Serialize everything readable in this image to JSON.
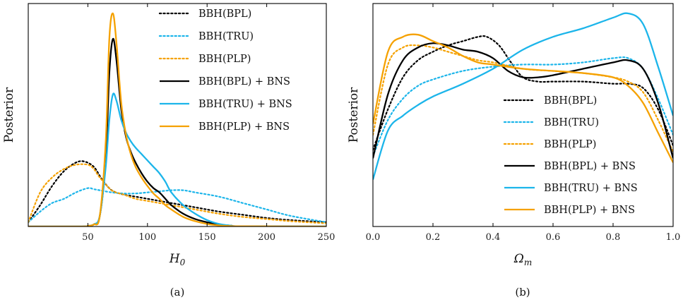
{
  "colors": {
    "BPL": "#000000",
    "TRU": "#1cb5ea",
    "PLP": "#f5a100"
  },
  "chart_data": [
    {
      "type": "line",
      "panel_caption": "(a)",
      "xlabel_main": "H",
      "xlabel_sub": "0",
      "ylabel": "Posterior",
      "xlim": [
        0,
        250
      ],
      "ylim": [
        0,
        1.0
      ],
      "xticks": [
        50,
        100,
        150,
        200,
        250
      ],
      "xtick_labels": [
        "50",
        "100",
        "150",
        "200",
        "250"
      ],
      "legend_position": "upper-right",
      "series": [
        {
          "name": "BBH(BPL)",
          "color": "BPL",
          "dash": "dotted",
          "x": [
            0,
            10,
            20,
            30,
            40,
            47,
            55,
            62,
            70,
            80,
            90,
            100,
            120,
            140,
            160,
            180,
            200,
            220,
            250
          ],
          "y": [
            0.02,
            0.1,
            0.19,
            0.26,
            0.3,
            0.305,
            0.28,
            0.22,
            0.17,
            0.15,
            0.14,
            0.13,
            0.11,
            0.09,
            0.07,
            0.055,
            0.04,
            0.03,
            0.02
          ]
        },
        {
          "name": "BBH(TRU)",
          "color": "TRU",
          "dash": "dotted",
          "x": [
            0,
            10,
            20,
            30,
            40,
            50,
            55,
            60,
            70,
            80,
            90,
            100,
            110,
            120,
            130,
            140,
            160,
            180,
            200,
            220,
            250
          ],
          "y": [
            0.02,
            0.07,
            0.11,
            0.13,
            0.16,
            0.18,
            0.175,
            0.17,
            0.16,
            0.155,
            0.155,
            0.16,
            0.165,
            0.17,
            0.17,
            0.16,
            0.14,
            0.11,
            0.08,
            0.05,
            0.02
          ]
        },
        {
          "name": "BBH(PLP)",
          "color": "PLP",
          "dash": "dotted",
          "x": [
            0,
            10,
            20,
            30,
            40,
            50,
            55,
            60,
            70,
            80,
            90,
            100,
            120,
            140,
            160,
            180,
            200,
            220,
            250
          ],
          "y": [
            0.02,
            0.16,
            0.23,
            0.27,
            0.29,
            0.29,
            0.27,
            0.23,
            0.17,
            0.15,
            0.13,
            0.12,
            0.1,
            0.08,
            0.06,
            0.045,
            0.035,
            0.025,
            0.015
          ]
        },
        {
          "name": "BBH(BPL) + BNS",
          "color": "BPL",
          "dash": "solid",
          "x": [
            0,
            45,
            50,
            55,
            60,
            65,
            68,
            71,
            74,
            78,
            82,
            86,
            90,
            95,
            100,
            105,
            110,
            115,
            120,
            130,
            140,
            150,
            160,
            170,
            180,
            250
          ],
          "y": [
            0,
            0,
            0.003,
            0.01,
            0.05,
            0.32,
            0.72,
            0.88,
            0.78,
            0.55,
            0.42,
            0.35,
            0.3,
            0.25,
            0.21,
            0.18,
            0.16,
            0.13,
            0.1,
            0.06,
            0.035,
            0.02,
            0.01,
            0.004,
            0.001,
            0
          ]
        },
        {
          "name": "BBH(TRU) + BNS",
          "color": "TRU",
          "dash": "solid",
          "x": [
            0,
            45,
            50,
            55,
            60,
            65,
            68,
            71,
            74,
            78,
            82,
            86,
            90,
            95,
            100,
            105,
            110,
            115,
            120,
            130,
            140,
            150,
            160,
            170,
            180,
            250
          ],
          "y": [
            0,
            0,
            0.003,
            0.01,
            0.05,
            0.28,
            0.5,
            0.62,
            0.59,
            0.5,
            0.44,
            0.4,
            0.37,
            0.34,
            0.31,
            0.28,
            0.25,
            0.21,
            0.16,
            0.1,
            0.06,
            0.03,
            0.012,
            0.004,
            0.001,
            0
          ]
        },
        {
          "name": "BBH(PLP) + BNS",
          "color": "PLP",
          "dash": "solid",
          "x": [
            0,
            45,
            50,
            55,
            60,
            65,
            68,
            71,
            74,
            78,
            82,
            86,
            90,
            95,
            100,
            105,
            110,
            115,
            120,
            130,
            140,
            150,
            160,
            170,
            180,
            250
          ],
          "y": [
            0,
            0,
            0.003,
            0.01,
            0.05,
            0.4,
            0.88,
            1.0,
            0.86,
            0.58,
            0.43,
            0.34,
            0.28,
            0.23,
            0.19,
            0.155,
            0.13,
            0.1,
            0.08,
            0.045,
            0.025,
            0.012,
            0.005,
            0.002,
            0.001,
            0
          ]
        }
      ]
    },
    {
      "type": "line",
      "panel_caption": "(b)",
      "xlabel_main": "Ω",
      "xlabel_sub": "m",
      "ylabel": "Posterior",
      "xlim": [
        0,
        1.0
      ],
      "ylim": [
        0,
        1.0
      ],
      "xticks": [
        0.0,
        0.2,
        0.4,
        0.6,
        0.8,
        1.0
      ],
      "xtick_labels": [
        "0.0",
        "0.2",
        "0.4",
        "0.6",
        "0.8",
        "1.0"
      ],
      "legend_position": "lower-right",
      "series": [
        {
          "name": "BBH(BPL)",
          "color": "BPL",
          "dash": "dotted",
          "x": [
            0,
            0.05,
            0.1,
            0.15,
            0.2,
            0.25,
            0.3,
            0.35,
            0.38,
            0.42,
            0.46,
            0.5,
            0.55,
            0.6,
            0.7,
            0.8,
            0.85,
            0.9,
            0.95,
            1.0
          ],
          "y": [
            0.36,
            0.55,
            0.7,
            0.78,
            0.82,
            0.85,
            0.87,
            0.89,
            0.89,
            0.85,
            0.77,
            0.7,
            0.68,
            0.68,
            0.68,
            0.67,
            0.67,
            0.65,
            0.55,
            0.38
          ]
        },
        {
          "name": "BBH(TRU)",
          "color": "TRU",
          "dash": "dotted",
          "x": [
            0,
            0.05,
            0.1,
            0.15,
            0.2,
            0.3,
            0.4,
            0.5,
            0.6,
            0.7,
            0.8,
            0.85,
            0.9,
            0.95,
            1.0
          ],
          "y": [
            0.33,
            0.5,
            0.6,
            0.66,
            0.69,
            0.73,
            0.75,
            0.76,
            0.76,
            0.77,
            0.79,
            0.79,
            0.74,
            0.6,
            0.43
          ]
        },
        {
          "name": "BBH(PLP)",
          "color": "PLP",
          "dash": "dotted",
          "x": [
            0,
            0.05,
            0.1,
            0.15,
            0.2,
            0.25,
            0.3,
            0.35,
            0.4,
            0.5,
            0.6,
            0.7,
            0.8,
            0.85,
            0.9,
            0.95,
            1.0
          ],
          "y": [
            0.43,
            0.76,
            0.84,
            0.85,
            0.84,
            0.82,
            0.8,
            0.78,
            0.77,
            0.74,
            0.73,
            0.72,
            0.7,
            0.68,
            0.63,
            0.5,
            0.35
          ]
        },
        {
          "name": "BBH(BPL) + BNS",
          "color": "BPL",
          "dash": "solid",
          "x": [
            0,
            0.05,
            0.1,
            0.15,
            0.2,
            0.25,
            0.3,
            0.35,
            0.4,
            0.45,
            0.5,
            0.55,
            0.6,
            0.7,
            0.8,
            0.85,
            0.9,
            0.95,
            1.0
          ],
          "y": [
            0.32,
            0.62,
            0.78,
            0.84,
            0.86,
            0.85,
            0.83,
            0.82,
            0.79,
            0.73,
            0.7,
            0.7,
            0.71,
            0.74,
            0.77,
            0.78,
            0.74,
            0.58,
            0.32
          ]
        },
        {
          "name": "BBH(TRU) + BNS",
          "color": "TRU",
          "dash": "solid",
          "x": [
            0,
            0.05,
            0.1,
            0.15,
            0.2,
            0.3,
            0.4,
            0.5,
            0.6,
            0.7,
            0.8,
            0.85,
            0.9,
            0.95,
            1.0
          ],
          "y": [
            0.22,
            0.45,
            0.52,
            0.57,
            0.61,
            0.67,
            0.74,
            0.83,
            0.89,
            0.93,
            0.98,
            1.0,
            0.95,
            0.75,
            0.52
          ]
        },
        {
          "name": "BBH(PLP) + BNS",
          "color": "PLP",
          "dash": "solid",
          "x": [
            0,
            0.05,
            0.1,
            0.15,
            0.2,
            0.25,
            0.3,
            0.35,
            0.4,
            0.5,
            0.6,
            0.7,
            0.8,
            0.85,
            0.9,
            0.95,
            1.0
          ],
          "y": [
            0.48,
            0.82,
            0.89,
            0.9,
            0.87,
            0.84,
            0.8,
            0.77,
            0.76,
            0.74,
            0.73,
            0.72,
            0.7,
            0.66,
            0.58,
            0.44,
            0.3
          ]
        }
      ]
    }
  ]
}
